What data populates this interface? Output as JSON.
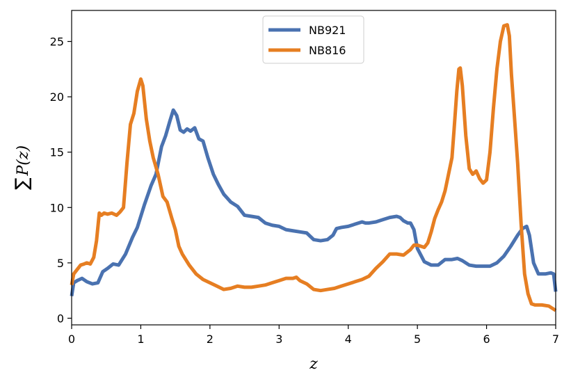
{
  "chart_data": {
    "type": "line",
    "xlabel": "z",
    "ylabel_parts": {
      "sum": "∑",
      "expr": "P(z)"
    },
    "xlim": [
      0,
      7
    ],
    "ylim": [
      -0.6,
      27.8
    ],
    "xticks": [
      "0",
      "1",
      "2",
      "3",
      "4",
      "5",
      "6",
      "7"
    ],
    "yticks": [
      "0",
      "5",
      "10",
      "15",
      "20",
      "25"
    ],
    "grid": false,
    "legend_placement": "top-center",
    "series": [
      {
        "name": "NB921",
        "color": "#4a72b0",
        "x": [
          0.0,
          0.03,
          0.08,
          0.15,
          0.22,
          0.3,
          0.38,
          0.45,
          0.52,
          0.6,
          0.68,
          0.78,
          0.88,
          0.95,
          1.05,
          1.15,
          1.22,
          1.3,
          1.36,
          1.42,
          1.47,
          1.52,
          1.57,
          1.62,
          1.67,
          1.72,
          1.78,
          1.84,
          1.9,
          1.97,
          2.05,
          2.12,
          2.2,
          2.3,
          2.4,
          2.5,
          2.6,
          2.7,
          2.8,
          2.9,
          3.0,
          3.1,
          3.2,
          3.3,
          3.4,
          3.5,
          3.6,
          3.7,
          3.78,
          3.83,
          3.9,
          4.0,
          4.1,
          4.2,
          4.25,
          4.3,
          4.4,
          4.5,
          4.6,
          4.7,
          4.75,
          4.8,
          4.86,
          4.9,
          4.95,
          5.0,
          5.1,
          5.2,
          5.3,
          5.4,
          5.5,
          5.58,
          5.65,
          5.75,
          5.85,
          5.95,
          6.05,
          6.15,
          6.25,
          6.35,
          6.45,
          6.52,
          6.58,
          6.62,
          6.68,
          6.75,
          6.85,
          6.93,
          6.97,
          7.0
        ],
        "y": [
          2.0,
          3.2,
          3.4,
          3.6,
          3.3,
          3.1,
          3.2,
          4.2,
          4.5,
          4.9,
          4.8,
          5.8,
          7.3,
          8.2,
          10.2,
          12.0,
          13.0,
          15.5,
          16.5,
          17.8,
          18.8,
          18.3,
          17.0,
          16.8,
          17.1,
          16.9,
          17.2,
          16.2,
          16.0,
          14.5,
          13.0,
          12.1,
          11.2,
          10.5,
          10.1,
          9.3,
          9.2,
          9.1,
          8.6,
          8.4,
          8.3,
          8.0,
          7.9,
          7.8,
          7.7,
          7.1,
          7.0,
          7.1,
          7.5,
          8.1,
          8.2,
          8.3,
          8.5,
          8.7,
          8.6,
          8.6,
          8.7,
          8.9,
          9.1,
          9.2,
          9.1,
          8.8,
          8.6,
          8.6,
          8.0,
          6.3,
          5.1,
          4.8,
          4.8,
          5.3,
          5.3,
          5.4,
          5.2,
          4.8,
          4.7,
          4.7,
          4.7,
          5.0,
          5.6,
          6.5,
          7.5,
          8.1,
          8.3,
          7.5,
          5.0,
          4.0,
          4.0,
          4.1,
          4.0,
          2.4
        ]
      },
      {
        "name": "NB816",
        "color": "#e67e22",
        "x": [
          0.0,
          0.03,
          0.08,
          0.13,
          0.18,
          0.22,
          0.27,
          0.32,
          0.36,
          0.4,
          0.43,
          0.47,
          0.52,
          0.58,
          0.65,
          0.7,
          0.75,
          0.8,
          0.85,
          0.9,
          0.95,
          1.0,
          1.03,
          1.08,
          1.13,
          1.18,
          1.25,
          1.32,
          1.38,
          1.45,
          1.5,
          1.55,
          1.6,
          1.7,
          1.8,
          1.9,
          2.0,
          2.1,
          2.2,
          2.3,
          2.4,
          2.5,
          2.6,
          2.7,
          2.8,
          2.9,
          3.0,
          3.1,
          3.2,
          3.25,
          3.3,
          3.4,
          3.5,
          3.6,
          3.7,
          3.8,
          3.9,
          4.0,
          4.1,
          4.2,
          4.3,
          4.4,
          4.5,
          4.6,
          4.7,
          4.8,
          4.9,
          4.95,
          5.0,
          5.05,
          5.1,
          5.15,
          5.2,
          5.25,
          5.3,
          5.35,
          5.4,
          5.45,
          5.5,
          5.53,
          5.57,
          5.6,
          5.62,
          5.65,
          5.7,
          5.75,
          5.8,
          5.85,
          5.9,
          5.95,
          6.0,
          6.05,
          6.1,
          6.15,
          6.2,
          6.25,
          6.3,
          6.33,
          6.36,
          6.4,
          6.45,
          6.5,
          6.55,
          6.6,
          6.65,
          6.7,
          6.8,
          6.9,
          7.0
        ],
        "y": [
          3.0,
          4.0,
          4.4,
          4.8,
          4.9,
          5.0,
          4.9,
          5.5,
          7.0,
          9.5,
          9.3,
          9.5,
          9.4,
          9.5,
          9.3,
          9.6,
          10.0,
          14.0,
          17.5,
          18.5,
          20.5,
          21.6,
          21.0,
          18.0,
          16.0,
          14.5,
          13.0,
          11.0,
          10.5,
          9.0,
          8.0,
          6.5,
          5.8,
          4.8,
          4.0,
          3.5,
          3.2,
          2.9,
          2.6,
          2.7,
          2.9,
          2.8,
          2.8,
          2.9,
          3.0,
          3.2,
          3.4,
          3.6,
          3.6,
          3.7,
          3.4,
          3.1,
          2.6,
          2.5,
          2.6,
          2.7,
          2.9,
          3.1,
          3.3,
          3.5,
          3.8,
          4.5,
          5.1,
          5.8,
          5.8,
          5.7,
          6.2,
          6.6,
          6.6,
          6.5,
          6.4,
          6.8,
          7.8,
          9.0,
          9.8,
          10.5,
          11.5,
          13.0,
          14.5,
          17.0,
          20.5,
          22.5,
          22.6,
          21.0,
          16.5,
          13.5,
          13.0,
          13.3,
          12.6,
          12.2,
          12.5,
          15.0,
          19.0,
          22.5,
          25.0,
          26.4,
          26.5,
          25.5,
          22.0,
          18.5,
          14.0,
          8.5,
          4.0,
          2.2,
          1.3,
          1.2,
          1.2,
          1.1,
          0.7
        ]
      }
    ]
  }
}
